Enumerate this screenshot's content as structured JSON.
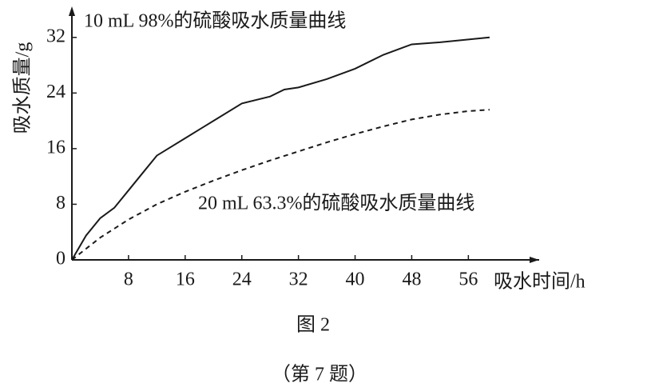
{
  "chart_data": {
    "type": "line",
    "ylabel": "吸水质量/g",
    "xlabel": "吸水时间/h",
    "caption": "图 2",
    "footnote": "（第 7 题）",
    "xlim": [
      0,
      66
    ],
    "ylim": [
      0,
      36
    ],
    "xticks": [
      8,
      16,
      24,
      32,
      40,
      48,
      56
    ],
    "yticks": [
      0,
      8,
      16,
      24,
      32
    ],
    "series": [
      {
        "name": "10 mL 98%的硫酸吸水质量曲线",
        "color": "#1a1a1a",
        "dash": "solid",
        "x": [
          0,
          2,
          4,
          6,
          8,
          10,
          12,
          16,
          20,
          24,
          28,
          30,
          32,
          36,
          40,
          42,
          44,
          48,
          52,
          56,
          59
        ],
        "values": [
          0,
          3.5,
          6,
          7.5,
          10,
          12.5,
          15,
          17.5,
          20,
          22.5,
          23.5,
          24.5,
          24.8,
          26,
          27.5,
          28.5,
          29.5,
          31,
          31.3,
          31.7,
          32
        ]
      },
      {
        "name": "20 mL 63.3%的硫酸吸水质量曲线",
        "color": "#1a1a1a",
        "dash": "dashed",
        "x": [
          0,
          4,
          8,
          12,
          16,
          20,
          24,
          28,
          32,
          36,
          40,
          44,
          48,
          52,
          56,
          59
        ],
        "values": [
          0,
          3.2,
          5.8,
          8,
          9.8,
          11.4,
          12.9,
          14.3,
          15.6,
          16.9,
          18.1,
          19.2,
          20.2,
          20.9,
          21.4,
          21.6
        ]
      }
    ]
  }
}
